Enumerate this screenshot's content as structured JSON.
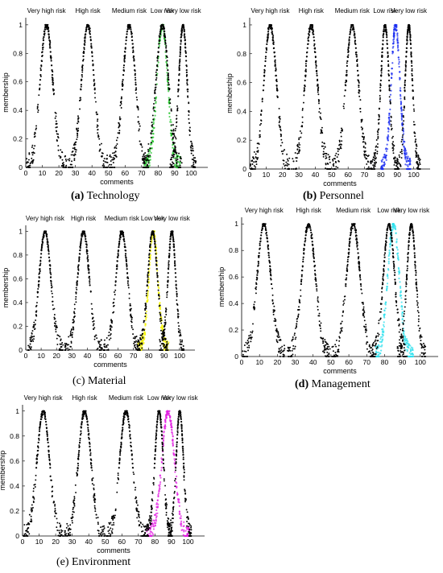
{
  "chart_data": [
    {
      "id": "a",
      "type": "scatter",
      "caption_letter": "(a)",
      "caption_text": " Technology",
      "caption_letter_bold": true,
      "xlabel": "comments",
      "ylabel": "membership",
      "xlim": [
        0,
        110
      ],
      "ylim": [
        0,
        1.05
      ],
      "xticks": [
        0,
        10,
        20,
        30,
        40,
        50,
        60,
        70,
        80,
        90,
        100
      ],
      "yticks": [
        0,
        0.2,
        0.4,
        0.6,
        0.8,
        1
      ],
      "grid": false,
      "risk_levels": [
        {
          "label": "Very high risk",
          "center": 12.5,
          "width": 12
        },
        {
          "label": "High risk",
          "center": 37.5,
          "width": 12
        },
        {
          "label": "Medium risk",
          "center": 62.5,
          "width": 12
        },
        {
          "label": "Low risk",
          "center": 82.5,
          "width": 12
        },
        {
          "label": "Very low risk",
          "center": 95,
          "width": 8
        }
      ],
      "highlight": {
        "center": 82.5,
        "width": 11,
        "color": "#22c42a"
      }
    },
    {
      "id": "b",
      "type": "scatter",
      "caption_letter": "(b)",
      "caption_text": " Personnel",
      "caption_letter_bold": true,
      "xlabel": "comments",
      "ylabel": "membership",
      "xlim": [
        0,
        110
      ],
      "ylim": [
        0,
        1.05
      ],
      "xticks": [
        0,
        10,
        20,
        30,
        40,
        50,
        60,
        70,
        80,
        90,
        100
      ],
      "yticks": [
        0,
        0.2,
        0.4,
        0.6,
        0.8,
        1
      ],
      "grid": false,
      "risk_levels": [
        {
          "label": "Very high risk",
          "center": 12.5,
          "width": 12
        },
        {
          "label": "High risk",
          "center": 37.5,
          "width": 12
        },
        {
          "label": "Medium risk",
          "center": 62.5,
          "width": 12
        },
        {
          "label": "Low risk",
          "center": 82.5,
          "width": 8
        },
        {
          "label": "Very low risk",
          "center": 97,
          "width": 7
        }
      ],
      "highlight": {
        "center": 89,
        "width": 9,
        "color": "#1a2cf0"
      }
    },
    {
      "id": "c",
      "type": "scatter",
      "caption_letter": "(c)",
      "caption_text": " Material",
      "caption_letter_bold": false,
      "xlabel": "comments",
      "ylabel": "membership",
      "xlim": [
        0,
        110
      ],
      "ylim": [
        0,
        1.05
      ],
      "xticks": [
        0,
        10,
        20,
        30,
        40,
        50,
        60,
        70,
        80,
        90,
        100
      ],
      "yticks": [
        0,
        0.2,
        0.4,
        0.6,
        0.8,
        1
      ],
      "grid": false,
      "risk_levels": [
        {
          "label": "Very high risk",
          "center": 12.5,
          "width": 12
        },
        {
          "label": "High risk",
          "center": 37.5,
          "width": 12
        },
        {
          "label": "Medium risk",
          "center": 62.5,
          "width": 12
        },
        {
          "label": "Low risk",
          "center": 82.5,
          "width": 10
        },
        {
          "label": "Very low risk",
          "center": 95,
          "width": 8
        }
      ],
      "highlight": {
        "center": 83,
        "width": 10,
        "color": "#f4f400"
      }
    },
    {
      "id": "d",
      "type": "scatter",
      "caption_letter": "(d)",
      "caption_text": " Management",
      "caption_letter_bold": true,
      "xlabel": "comments",
      "ylabel": "membership",
      "xlim": [
        0,
        110
      ],
      "ylim": [
        0,
        1.05
      ],
      "xticks": [
        0,
        10,
        20,
        30,
        40,
        50,
        60,
        70,
        80,
        90,
        100
      ],
      "yticks": [
        0,
        0.2,
        0.4,
        0.6,
        0.8,
        1
      ],
      "grid": false,
      "risk_levels": [
        {
          "label": "Very high risk",
          "center": 12.5,
          "width": 12
        },
        {
          "label": "High risk",
          "center": 37.5,
          "width": 12
        },
        {
          "label": "Medium risk",
          "center": 62.5,
          "width": 12
        },
        {
          "label": "Low risk",
          "center": 82.5,
          "width": 10
        },
        {
          "label": "Very low risk",
          "center": 95,
          "width": 8
        }
      ],
      "highlight": {
        "center": 85,
        "width": 11,
        "color": "#2ee0ee"
      }
    },
    {
      "id": "e",
      "type": "scatter",
      "caption_letter": "(e)",
      "caption_text": " Environment",
      "caption_letter_bold": false,
      "xlabel": "comments",
      "ylabel": "membership",
      "xlim": [
        0,
        110
      ],
      "ylim": [
        0,
        1.05
      ],
      "xticks": [
        0,
        10,
        20,
        30,
        40,
        50,
        60,
        70,
        80,
        90,
        100
      ],
      "yticks": [
        0,
        0.2,
        0.4,
        0.6,
        0.8,
        1
      ],
      "grid": false,
      "risk_levels": [
        {
          "label": "Very high risk",
          "center": 12.5,
          "width": 12
        },
        {
          "label": "High risk",
          "center": 37.5,
          "width": 12
        },
        {
          "label": "Medium risk",
          "center": 62.5,
          "width": 12
        },
        {
          "label": "Low risk",
          "center": 82.5,
          "width": 8
        },
        {
          "label": "Very low risk",
          "center": 95,
          "width": 7
        }
      ],
      "highlight": {
        "center": 88,
        "width": 13,
        "color": "#e21ee2"
      }
    }
  ]
}
